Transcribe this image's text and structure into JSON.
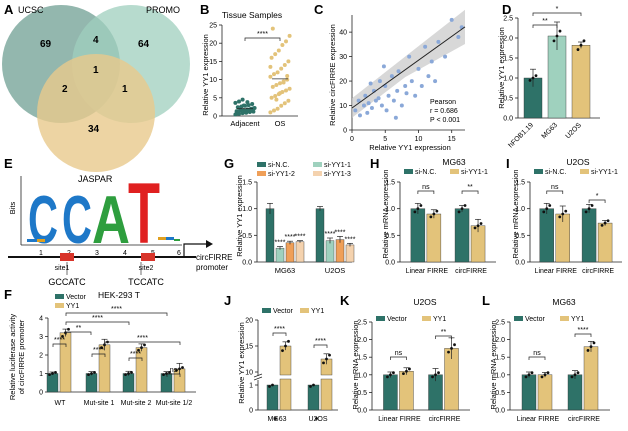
{
  "figure": {
    "panel_letters": [
      "A",
      "B",
      "C",
      "D",
      "E",
      "F",
      "G",
      "H",
      "I",
      "J",
      "K",
      "L"
    ],
    "colors": {
      "teal": "#2e7268",
      "tan": "#e3c37a",
      "orange": "#ef9f58",
      "peach": "#f4d2ae",
      "mint": "#9fd1be"
    }
  },
  "panel_a": {
    "sets": [
      "UCSC",
      "PROMO",
      "JASPAR"
    ],
    "counts": {
      "ucsc_only": "69",
      "ucsc_promo": "4",
      "promo_only": "64",
      "center": "1",
      "ucsc_jaspar": "2",
      "promo_jaspar": "1",
      "jaspar_only": "34"
    },
    "set_colors": [
      "#6f9f93",
      "#9fcfbe",
      "#e8c98c"
    ]
  },
  "panel_b": {
    "title": "Tissue Samples",
    "ylabel": "Relative YY1 expression",
    "sig": "****",
    "yticks": [
      "0",
      "5",
      "10",
      "15",
      "20",
      "25"
    ]
  },
  "panel_c": {
    "xlabel": "Relative YY1 expression",
    "ylabel": "Relative circFIRRE expression",
    "stats": [
      "Pearson",
      "r = 0.686",
      "P < 0.001"
    ],
    "xticks": [
      "0",
      "5",
      "10",
      "15"
    ],
    "yticks": [
      "0",
      "10",
      "20",
      "30",
      "40"
    ]
  },
  "panel_d": {
    "ylabel": "Relative YY1 expression",
    "sig": [
      "**",
      "*"
    ],
    "yticks": [
      "0.0",
      "0.5",
      "1.0",
      "1.5",
      "2.0",
      "2.5"
    ]
  },
  "panel_e": {
    "yaxis": "Bits",
    "positions": [
      "1",
      "2",
      "3",
      "4",
      "5",
      "6"
    ],
    "site1": "site1",
    "site2": "site2",
    "seq1": "GCCATC",
    "seq2": "TCCATC",
    "promoter": [
      "circFIRRE",
      "promoter"
    ],
    "logo_letters": [
      "C",
      "C",
      "A",
      "T"
    ]
  },
  "panel_f": {
    "title": "HEK-293 T",
    "ylabel": [
      "Relative luciferase activity",
      "of circFIRRE promoter"
    ],
    "legend": [
      "Vector",
      "YY1"
    ],
    "sig": [
      "****",
      "**",
      "****",
      "****",
      "****",
      "****",
      "****",
      "ns"
    ],
    "yticks": [
      "0",
      "1",
      "2",
      "3",
      "4"
    ]
  },
  "panel_g": {
    "ylabel": "Relative YY1 expression",
    "legend": [
      "si-N.C.",
      "si-YY1-1",
      "si-YY1-2",
      "si-YY1-3"
    ],
    "sig": "****",
    "yticks": [
      "0.0",
      "0.5",
      "1.0",
      "1.5"
    ]
  },
  "panel_h": {
    "title": "MG63",
    "ylabel": "Relative mRNA expression",
    "legend": [
      "si-N.C.",
      "si-YY1-1"
    ],
    "sig": [
      "ns",
      "**"
    ],
    "yticks": [
      "0.0",
      "0.5",
      "1.0",
      "1.5"
    ]
  },
  "panel_i": {
    "title": "U2OS",
    "ylabel": "Relative mRNA expression",
    "legend": [
      "si-N.C.",
      "si-YY1-1"
    ],
    "sig": [
      "ns",
      "*"
    ],
    "yticks": [
      "0.0",
      "0.5",
      "1.0",
      "1.5"
    ]
  },
  "panel_j": {
    "ylabel": "Relative YY1 expression",
    "legend": [
      "Vector",
      "YY1"
    ],
    "sig": [
      "****",
      "****"
    ],
    "yticks": [
      "0",
      "1",
      "10",
      "15",
      "20"
    ]
  },
  "panel_k": {
    "title": "U2OS",
    "ylabel": "Relative mRNA expression",
    "legend": [
      "Vector",
      "YY1"
    ],
    "sig": [
      "ns",
      "**"
    ],
    "yticks": [
      "0.0",
      "0.5",
      "1.0",
      "1.5",
      "2.0",
      "2.5"
    ]
  },
  "panel_l": {
    "title": "MG63",
    "ylabel": "Relative mRNA expression",
    "legend": [
      "Vector",
      "YY1"
    ],
    "sig": [
      "ns",
      "****"
    ],
    "yticks": [
      "0.0",
      "0.5",
      "1.0",
      "1.5",
      "2.0",
      "2.5"
    ]
  },
  "chart_data": [
    {
      "panel": "B",
      "type": "scatter",
      "title": "Tissue Samples",
      "xlabel": "",
      "ylabel": "Relative YY1 expression",
      "categories": [
        "Adjacent",
        "OS"
      ],
      "series": [
        {
          "name": "Adjacent",
          "values": [
            0.4,
            0.6,
            0.8,
            1.0,
            1.1,
            1.2,
            1.3,
            1.5,
            1.6,
            1.8,
            2.0,
            2.2,
            2.4,
            2.6,
            2.8,
            3.0,
            3.3,
            3.6,
            4.0,
            4.5,
            0.9,
            1.4,
            2.1,
            0.7,
            1.7,
            2.9,
            3.8
          ]
        },
        {
          "name": "OS",
          "values": [
            1.0,
            1.5,
            2.0,
            2.8,
            3.5,
            4.2,
            5.0,
            5.5,
            6.0,
            6.6,
            7.0,
            7.5,
            8.0,
            8.5,
            9.0,
            9.5,
            10.0,
            10.8,
            11.5,
            12.0,
            13.0,
            14.0,
            15.0,
            16.0,
            17.0,
            18.0,
            19.5,
            20.5,
            22.0,
            24.0,
            4.5,
            6.3,
            9.2,
            11.0,
            13.5
          ]
        }
      ],
      "bar_means": [
        2.0,
        10.2
      ],
      "ylim": [
        0,
        25
      ]
    },
    {
      "panel": "C",
      "type": "scatter",
      "xlabel": "Relative YY1 expression",
      "ylabel": "Relative circFIRRE expression",
      "x": [
        0.5,
        1,
        1.2,
        1.8,
        2,
        2.3,
        2.5,
        3,
        3.3,
        3.6,
        4,
        4.2,
        4.5,
        5,
        5.2,
        5.5,
        6,
        6.3,
        6.8,
        7,
        7.5,
        8,
        8.2,
        8.6,
        9,
        9.5,
        10,
        10.5,
        11,
        11.5,
        12,
        12.5,
        13,
        14,
        15,
        16,
        16.5,
        2.8,
        4.8,
        6.6
      ],
      "y": [
        8,
        12,
        6,
        10,
        14,
        7,
        11,
        9,
        16,
        12,
        13,
        20,
        10,
        18,
        8,
        14,
        22,
        12,
        16,
        24,
        10,
        18,
        15,
        30,
        20,
        14,
        25,
        18,
        34,
        22,
        28,
        20,
        36,
        30,
        45,
        38,
        42,
        19,
        26,
        5
      ],
      "fit": {
        "slope": 1.95,
        "intercept": 9.0
      },
      "xlim": [
        0,
        17
      ],
      "ylim": [
        0,
        47
      ]
    },
    {
      "panel": "D",
      "type": "bar",
      "ylabel": "Relative YY1 expression",
      "categories": [
        "hFOB1.19",
        "MG63",
        "U2OS"
      ],
      "values": [
        1.0,
        2.05,
        1.82
      ],
      "errors": [
        0.22,
        0.35,
        0.08
      ],
      "ylim": [
        0,
        2.5
      ]
    },
    {
      "panel": "F",
      "type": "bar",
      "ylabel": "Relative luciferase activity of circFIRRE promoter",
      "categories": [
        "WT",
        "Mut-site 1",
        "Mut-site 2",
        "Mut-site 1/2"
      ],
      "series": [
        {
          "name": "Vector",
          "values": [
            1.0,
            1.0,
            1.0,
            1.0
          ],
          "errors": [
            0.08,
            0.1,
            0.12,
            0.1
          ]
        },
        {
          "name": "YY1",
          "values": [
            3.2,
            2.55,
            2.4,
            1.25
          ],
          "errors": [
            0.2,
            0.3,
            0.2,
            0.3
          ]
        }
      ],
      "ylim": [
        0,
        4.5
      ]
    },
    {
      "panel": "G",
      "type": "bar",
      "ylabel": "Relative YY1 expression",
      "categories": [
        "MG63",
        "U2OS"
      ],
      "series": [
        {
          "name": "si-N.C.",
          "values": [
            1.0,
            1.0
          ],
          "errors": [
            0.1,
            0.04
          ]
        },
        {
          "name": "si-YY1-1",
          "values": [
            0.26,
            0.4
          ],
          "errors": [
            0.03,
            0.05
          ]
        },
        {
          "name": "si-YY1-2",
          "values": [
            0.36,
            0.42
          ],
          "errors": [
            0.03,
            0.06
          ]
        },
        {
          "name": "si-YY1-3",
          "values": [
            0.38,
            0.32
          ],
          "errors": [
            0.02,
            0.03
          ]
        }
      ],
      "ylim": [
        0,
        1.5
      ]
    },
    {
      "panel": "H",
      "type": "bar",
      "ylabel": "Relative mRNA expression",
      "categories": [
        "Linear FIRRE",
        "circFIRRE"
      ],
      "series": [
        {
          "name": "si-N.C.",
          "values": [
            1.0,
            1.0
          ],
          "errors": [
            0.1,
            0.06
          ]
        },
        {
          "name": "si-YY1-1",
          "values": [
            0.9,
            0.68
          ],
          "errors": [
            0.08,
            0.12
          ]
        }
      ],
      "ylim": [
        0,
        1.5
      ]
    },
    {
      "panel": "I",
      "type": "bar",
      "ylabel": "Relative mRNA expression",
      "categories": [
        "Linear FIRRE",
        "circFIRRE"
      ],
      "series": [
        {
          "name": "si-N.C.",
          "values": [
            1.0,
            1.0
          ],
          "errors": [
            0.1,
            0.08
          ]
        },
        {
          "name": "si-YY1-1",
          "values": [
            0.9,
            0.73
          ],
          "errors": [
            0.15,
            0.05
          ]
        }
      ],
      "ylim": [
        0,
        1.5
      ]
    },
    {
      "panel": "J",
      "type": "bar",
      "ylabel": "Relative YY1 expression",
      "categories": [
        "MG63",
        "U2OS"
      ],
      "series": [
        {
          "name": "Vector",
          "values": [
            1.0,
            1.0
          ],
          "errors": [
            0.03,
            0.04
          ]
        },
        {
          "name": "YY1",
          "values": [
            15.0,
            12.5
          ],
          "errors": [
            0.8,
            1.0
          ]
        }
      ],
      "ylim": [
        0,
        20
      ]
    },
    {
      "panel": "K",
      "type": "bar",
      "title": "U2OS",
      "ylabel": "Relative mRNA expression",
      "categories": [
        "Linear FIRRE",
        "circFIRRE"
      ],
      "series": [
        {
          "name": "Vector",
          "values": [
            1.0,
            1.0
          ],
          "errors": [
            0.08,
            0.18
          ]
        },
        {
          "name": "YY1",
          "values": [
            1.1,
            1.75
          ],
          "errors": [
            0.1,
            0.3
          ]
        }
      ],
      "ylim": [
        0,
        2.5
      ]
    },
    {
      "panel": "L",
      "type": "bar",
      "title": "MG63",
      "ylabel": "Relative mRNA expression",
      "categories": [
        "Linear FIRRE",
        "circFIRRE"
      ],
      "series": [
        {
          "name": "Vector",
          "values": [
            1.0,
            1.0
          ],
          "errors": [
            0.08,
            0.12
          ]
        },
        {
          "name": "YY1",
          "values": [
            1.0,
            1.8
          ],
          "errors": [
            0.07,
            0.15
          ]
        }
      ],
      "ylim": [
        0,
        2.5
      ]
    }
  ]
}
